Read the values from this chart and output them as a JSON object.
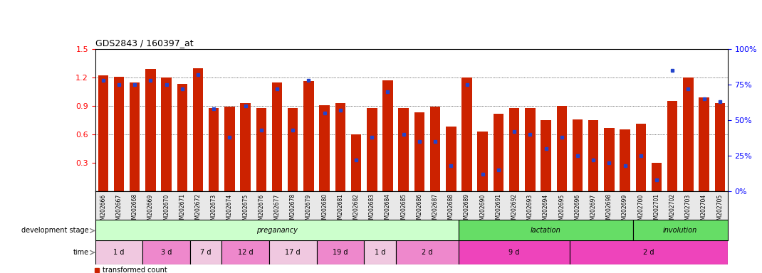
{
  "title": "GDS2843 / 160397_at",
  "samples": [
    "GSM202666",
    "GSM202667",
    "GSM202668",
    "GSM202669",
    "GSM202670",
    "GSM202671",
    "GSM202672",
    "GSM202673",
    "GSM202674",
    "GSM202675",
    "GSM202676",
    "GSM202677",
    "GSM202678",
    "GSM202679",
    "GSM202680",
    "GSM202681",
    "GSM202682",
    "GSM202683",
    "GSM202684",
    "GSM202685",
    "GSM202686",
    "GSM202687",
    "GSM202688",
    "GSM202689",
    "GSM202690",
    "GSM202691",
    "GSM202692",
    "GSM202693",
    "GSM202694",
    "GSM202695",
    "GSM202696",
    "GSM202697",
    "GSM202698",
    "GSM202699",
    "GSM202700",
    "GSM202701",
    "GSM202702",
    "GSM202703",
    "GSM202704",
    "GSM202705"
  ],
  "red_values": [
    1.22,
    1.21,
    1.15,
    1.29,
    1.2,
    1.13,
    1.3,
    0.88,
    0.89,
    0.93,
    0.88,
    1.15,
    0.88,
    1.16,
    0.91,
    0.93,
    0.6,
    0.88,
    1.17,
    0.88,
    0.83,
    0.89,
    0.68,
    1.2,
    0.63,
    0.82,
    0.88,
    0.88,
    0.75,
    0.9,
    0.76,
    0.75,
    0.67,
    0.65,
    0.71,
    0.3,
    0.95,
    1.2,
    0.99,
    0.93
  ],
  "blue_values": [
    78,
    75,
    75,
    78,
    75,
    72,
    82,
    58,
    38,
    60,
    43,
    72,
    43,
    78,
    55,
    57,
    22,
    38,
    70,
    40,
    35,
    35,
    18,
    75,
    12,
    15,
    42,
    40,
    30,
    38,
    25,
    22,
    20,
    18,
    25,
    8,
    85,
    72,
    65,
    63
  ],
  "ylim_left": [
    0.0,
    1.5
  ],
  "yticks_left": [
    0.3,
    0.6,
    0.9,
    1.2,
    1.5
  ],
  "yticks_right": [
    0,
    25,
    50,
    75,
    100
  ],
  "bar_color": "#cc2200",
  "dot_color": "#2244cc",
  "stage_configs": [
    {
      "label": "preganancy",
      "start": 0,
      "end": 23,
      "color": "#ccffcc"
    },
    {
      "label": "lactation",
      "start": 23,
      "end": 34,
      "color": "#66dd66"
    },
    {
      "label": "involution",
      "start": 34,
      "end": 40,
      "color": "#66dd66"
    }
  ],
  "time_configs": [
    {
      "label": "1 d",
      "start": 0,
      "end": 3,
      "color": "#f0c8e0"
    },
    {
      "label": "3 d",
      "start": 3,
      "end": 6,
      "color": "#ee88cc"
    },
    {
      "label": "7 d",
      "start": 6,
      "end": 8,
      "color": "#f0c8e0"
    },
    {
      "label": "12 d",
      "start": 8,
      "end": 11,
      "color": "#ee88cc"
    },
    {
      "label": "17 d",
      "start": 11,
      "end": 14,
      "color": "#f0c8e0"
    },
    {
      "label": "19 d",
      "start": 14,
      "end": 17,
      "color": "#ee88cc"
    },
    {
      "label": "1 d",
      "start": 17,
      "end": 19,
      "color": "#f0c8e0"
    },
    {
      "label": "2 d",
      "start": 19,
      "end": 23,
      "color": "#ee88cc"
    },
    {
      "label": "9 d",
      "start": 23,
      "end": 30,
      "color": "#ee44bb"
    },
    {
      "label": "2 d",
      "start": 30,
      "end": 40,
      "color": "#ee44bb"
    }
  ]
}
